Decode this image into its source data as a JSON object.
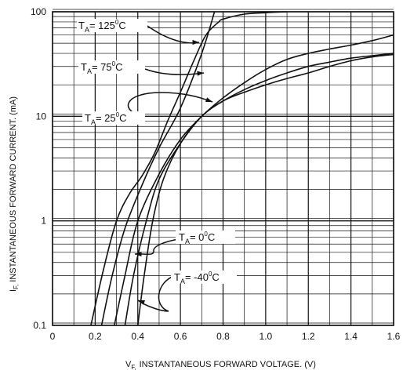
{
  "chart_data": {
    "type": "line",
    "title": "",
    "xlabel": "V_F, INSTANTANEOUS FORWARD VOLTAGE. (V)",
    "xlabel_main": "V",
    "xlabel_sub": "F,",
    "xlabel_rest": "INSTANTANEOUS FORWARD VOLTAGE. (V)",
    "ylabel": "I_F, INSTANTANEOUS FORWARD CURRENT. (mA)",
    "ylabel_main": "I",
    "ylabel_sub": "F,",
    "ylabel_rest": "INSTANTANEOUS FORWARD CURRENT. (mA)",
    "xlim": [
      0,
      1.6
    ],
    "ylim": [
      0.1,
      100
    ],
    "yscale": "log",
    "grid": true,
    "x_ticks": [
      "0",
      "0.2",
      "0.4",
      "0.6",
      "0.8",
      "1.0",
      "1.2",
      "1.4",
      "1.6"
    ],
    "y_ticks": [
      "0.1",
      "1",
      "10",
      "100"
    ],
    "series": [
      {
        "name": "T_A = 125°C",
        "x": [
          0.18,
          0.24,
          0.3,
          0.36,
          0.42,
          0.48,
          0.54,
          0.6,
          0.66,
          0.72,
          0.78,
          0.8,
          0.9,
          1.0,
          1.1
        ],
        "y": [
          0.1,
          0.35,
          1.0,
          1.8,
          2.7,
          4.5,
          9.0,
          17.0,
          33.0,
          60.0,
          80.0,
          85.0,
          95.0,
          98.0,
          100.0
        ]
      },
      {
        "name": "T_A = 75°C",
        "x": [
          0.23,
          0.28,
          0.34,
          0.42,
          0.5,
          0.6,
          0.7,
          0.76
        ],
        "y": [
          0.1,
          0.3,
          0.85,
          2.2,
          5.0,
          12.0,
          40.0,
          100.0
        ]
      },
      {
        "name": "T_A = 25°C",
        "x": [
          0.29,
          0.34,
          0.4,
          0.5,
          0.6,
          0.7,
          0.8,
          0.9,
          1.0,
          1.1,
          1.2,
          1.3,
          1.4,
          1.5,
          1.6
        ],
        "y": [
          0.1,
          0.3,
          1.0,
          2.8,
          6.0,
          10.0,
          15.0,
          21.0,
          28.0,
          35.0,
          40.0,
          44.0,
          48.0,
          53.0,
          60.0
        ]
      },
      {
        "name": "T_A = 0°C",
        "x": [
          0.34,
          0.38,
          0.44,
          0.5,
          0.6,
          0.7,
          0.8,
          0.9,
          1.0,
          1.1,
          1.2,
          1.3,
          1.4,
          1.5,
          1.6
        ],
        "y": [
          0.1,
          0.3,
          1.0,
          2.5,
          5.5,
          10.0,
          14.0,
          18.0,
          22.0,
          26.0,
          30.0,
          33.0,
          36.0,
          38.0,
          40.0
        ]
      },
      {
        "name": "T_A = -40°C",
        "x": [
          0.4,
          0.43,
          0.47,
          0.52,
          0.6,
          0.7,
          0.8,
          0.9,
          1.0,
          1.1,
          1.2,
          1.3,
          1.4,
          1.5,
          1.6
        ],
        "y": [
          0.1,
          0.3,
          1.0,
          2.5,
          5.5,
          10.0,
          14.0,
          17.0,
          20.0,
          23.0,
          26.0,
          30.0,
          34.0,
          37.0,
          39.0
        ]
      }
    ],
    "annotations": [
      {
        "main": "T",
        "sub": "A",
        "mid": "= 125",
        "sup": "0",
        "end": "C"
      },
      {
        "main": "T",
        "sub": "A",
        "mid": "= 75",
        "sup": "0",
        "end": "C"
      },
      {
        "main": "T",
        "sub": "A",
        "mid": "= 25",
        "sup": "0",
        "end": "C"
      },
      {
        "main": "T",
        "sub": "A",
        "mid": "= 0",
        "sup": "0",
        "end": "C"
      },
      {
        "main": "T",
        "sub": "A",
        "mid": "= -40",
        "sup": "0",
        "end": "C"
      }
    ]
  }
}
